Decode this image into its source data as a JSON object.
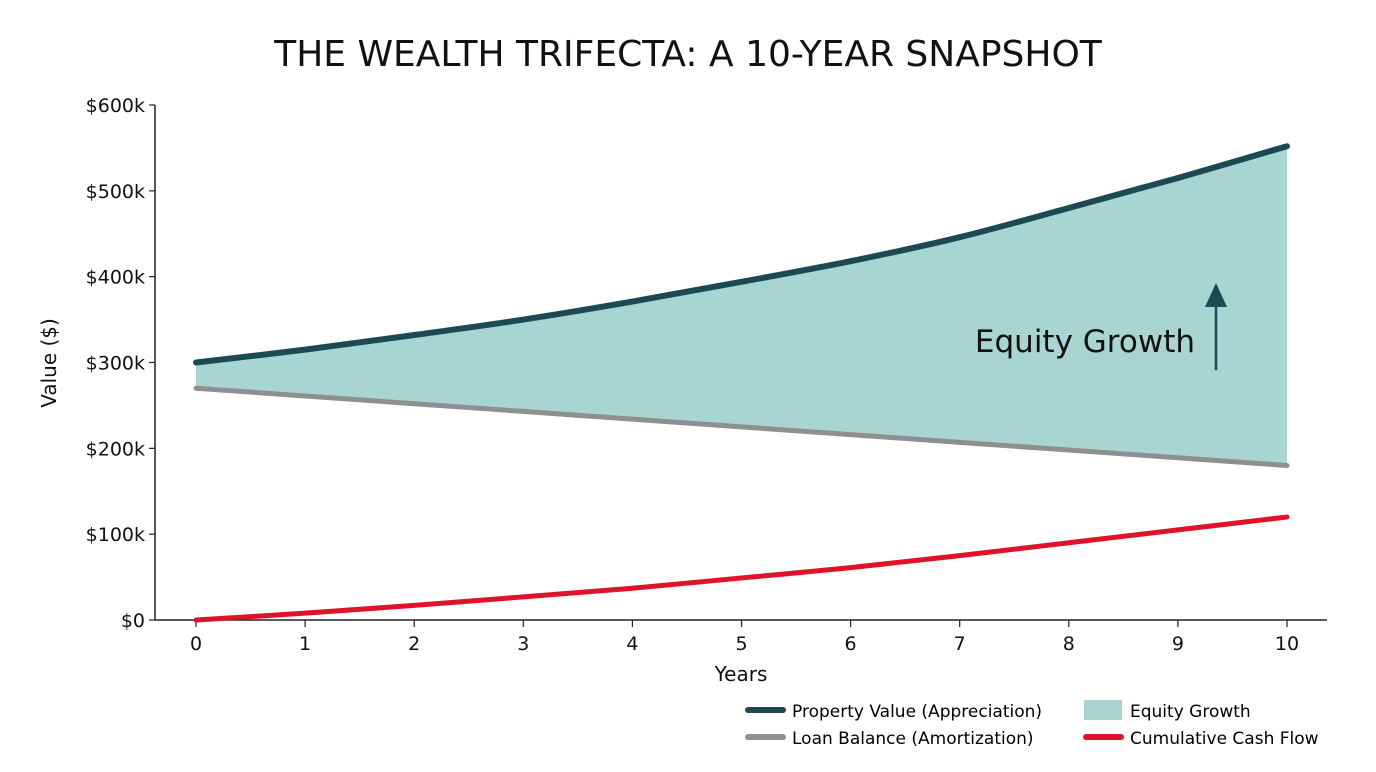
{
  "chart_data": {
    "type": "line",
    "title": "THE WEALTH TRIFECTA: A 10-YEAR SNAPSHOT",
    "xlabel": "Years",
    "ylabel": "Value ($)",
    "x": [
      0,
      1,
      2,
      3,
      4,
      5,
      6,
      7,
      8,
      9,
      10
    ],
    "xlim": [
      0,
      10
    ],
    "ylim": [
      0,
      600000
    ],
    "yticks": [
      0,
      100000,
      200000,
      300000,
      400000,
      500000,
      600000
    ],
    "ytick_labels": [
      "$0",
      "$100k",
      "$200k",
      "$300k",
      "$400k",
      "$500k",
      "$600k"
    ],
    "xtick_labels": [
      "0",
      "1",
      "2",
      "3",
      "4",
      "5",
      "6",
      "7",
      "8",
      "9",
      "10"
    ],
    "grid": false,
    "legend_position": "bottom-right",
    "series": [
      {
        "name": "Property Value (Appreciation)",
        "color": "#1c4a52",
        "values": [
          300000,
          315000,
          332000,
          350000,
          371000,
          394000,
          418000,
          446000,
          480000,
          515000,
          552000
        ]
      },
      {
        "name": "Loan Balance (Amortization)",
        "color": "#8f8f8f",
        "values": [
          270000,
          261000,
          252000,
          243000,
          234000,
          225000,
          216000,
          207000,
          198000,
          189000,
          180000
        ]
      },
      {
        "name": "Cumulative Cash Flow",
        "color": "#e0122a",
        "values": [
          0,
          8000,
          17000,
          27000,
          37000,
          49000,
          61000,
          75000,
          90000,
          105000,
          120000
        ]
      }
    ],
    "area": {
      "name": "Equity Growth",
      "color": "#a8d5d1",
      "between": [
        "Property Value (Appreciation)",
        "Loan Balance (Amortization)"
      ]
    },
    "annotation": {
      "text": "Equity Growth",
      "arrow": "up",
      "arrow_color": "#1c4a52"
    }
  }
}
